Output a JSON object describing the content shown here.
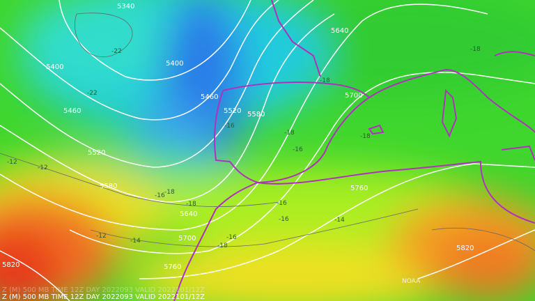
{
  "contour_labels": [
    "5340",
    "5400",
    "5400",
    "5460",
    "5460",
    "5520",
    "5520",
    "5580",
    "5580",
    "5640",
    "5640",
    "5700",
    "5700",
    "5760",
    "5760",
    "5820",
    "5820"
  ],
  "temperature_labels": [
    "-22",
    "-22",
    "-18",
    "-18",
    "-16",
    "-18",
    "-16",
    "-16",
    "-18",
    "-18",
    "-16",
    "-16",
    "-14",
    "-14",
    "-12",
    "-12",
    "-12",
    "-16",
    "-18",
    "-18"
  ],
  "watermark": "NOAA",
  "footer_ghost": "Z (M) 500 MB TIME 12Z DAY 2022093 VALID 2022101/12Z",
  "footer": "Z (M) 500 MB TIME 12Z DAY 2022093 VALID 2022101/12Z"
}
